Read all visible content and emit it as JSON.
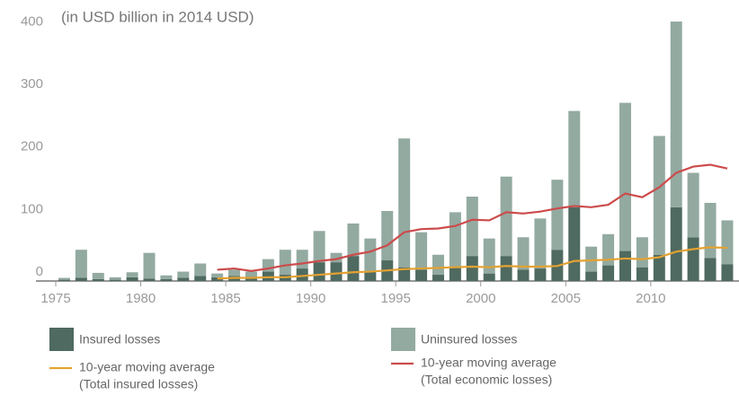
{
  "chart_data": {
    "type": "stacked-bar-line",
    "subtitle": "(in USD billion in 2014 USD)",
    "x": [
      1975,
      1976,
      1977,
      1978,
      1979,
      1980,
      1981,
      1982,
      1983,
      1984,
      1985,
      1986,
      1987,
      1988,
      1989,
      1990,
      1991,
      1992,
      1993,
      1994,
      1995,
      1996,
      1997,
      1998,
      1999,
      2000,
      2001,
      2002,
      2003,
      2004,
      2005,
      2006,
      2007,
      2008,
      2009,
      2010,
      2011,
      2012,
      2013,
      2014
    ],
    "xlim": [
      1975,
      2015
    ],
    "xticks": [
      1975,
      1980,
      1985,
      1990,
      1995,
      2000,
      2005,
      2010
    ],
    "ylim": [
      0,
      415
    ],
    "yticks": [
      0,
      100,
      200,
      300,
      400
    ],
    "series": [
      {
        "name": [
          "Insured losses"
        ],
        "kind": "bar",
        "color": "#4f6a60",
        "values": [
          2,
          5,
          3,
          2,
          6,
          4,
          3,
          5,
          8,
          6,
          8,
          7,
          15,
          10,
          20,
          30,
          30,
          40,
          15,
          33,
          22,
          18,
          10,
          22,
          40,
          12,
          40,
          18,
          20,
          50,
          118,
          15,
          25,
          48,
          22,
          42,
          118,
          70,
          37,
          27
        ]
      },
      {
        "name": [
          "Uninsured losses"
        ],
        "kind": "bar",
        "color": "#93aaa1",
        "values": [
          3,
          45,
          10,
          4,
          8,
          41,
          6,
          10,
          20,
          6,
          10,
          8,
          20,
          40,
          30,
          50,
          15,
          52,
          53,
          79,
          206,
          60,
          32,
          88,
          95,
          56,
          127,
          52,
          80,
          112,
          154,
          40,
          50,
          237,
          48,
          190,
          297,
          103,
          88,
          70
        ]
      },
      {
        "name": [
          "10-year moving average",
          "(Total insured losses)"
        ],
        "kind": "line",
        "color": "#e3a232",
        "values": [
          null,
          null,
          null,
          null,
          null,
          null,
          null,
          null,
          null,
          4,
          5,
          5,
          6,
          6,
          8,
          10,
          12,
          14,
          15,
          17,
          19,
          20,
          21,
          22,
          23,
          22,
          24,
          23,
          23,
          24,
          32,
          33,
          34,
          36,
          35,
          38,
          47,
          51,
          54,
          53
        ]
      },
      {
        "name": [
          "10-year moving average",
          "(Total economic losses)"
        ],
        "kind": "line",
        "color": "#cc4b4b",
        "values": [
          null,
          null,
          null,
          null,
          null,
          null,
          null,
          null,
          null,
          18,
          20,
          16,
          20,
          25,
          28,
          32,
          35,
          42,
          47,
          57,
          78,
          83,
          84,
          88,
          98,
          97,
          110,
          108,
          111,
          116,
          120,
          118,
          122,
          140,
          134,
          150,
          173,
          183,
          186,
          180
        ]
      }
    ]
  }
}
